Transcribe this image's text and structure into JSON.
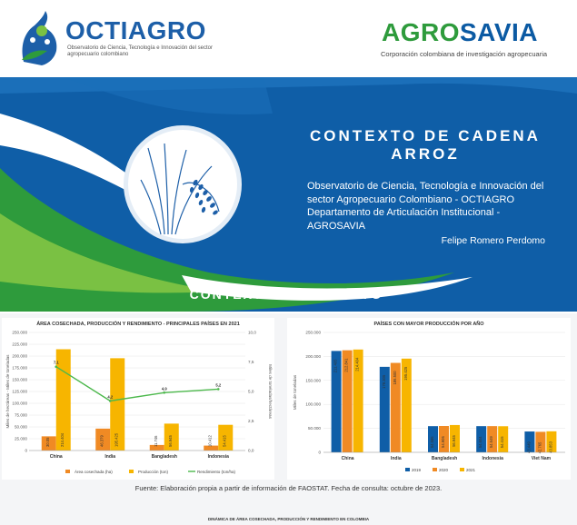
{
  "header": {
    "octiagro_name": "OCTIAGRO",
    "octiagro_subtitle": "Observatorio de Ciencia, Tecnología e Innovación del sector agropecuario colombiano",
    "agrosavia_part1": "AGRO",
    "agrosavia_part2": "SAVIA",
    "agrosavia_subtitle": "Corporación colombiana de investigación agropecuaria"
  },
  "banner": {
    "title_line1": "CONTEXTO DE CADENA",
    "title_line2": "ARROZ",
    "description": "Observatorio de Ciencia, Tecnología e Innovación del sector Agropecuario Colombiano - OCTIAGRO Departamento de Articulación Institucional - AGROSAVIA",
    "author": "Felipe Romero Perdomo",
    "section_title": "CONTEXTO PRODUCTIVO",
    "icon": "rice-plant-icon"
  },
  "colors": {
    "blue": "#0f5ea7",
    "green": "#2e9b3c",
    "orange": "#f08a24",
    "yellow": "#f7b500",
    "line": "#4cb84c"
  },
  "chart_data": [
    {
      "type": "bar",
      "title": "ÁREA COSECHADA, PRODUCCIÓN Y RENDIMIENTO - PRINCIPALES PAÍSES EN 2021",
      "categories": [
        "China",
        "India",
        "Bangladesh",
        "Indonesia"
      ],
      "ylabel": "Miles de hectáreas - Miles de toneladas",
      "y2label": "Miles de toneladas/hectáreas",
      "ylim": [
        0,
        250000
      ],
      "y_ticks": [
        "0",
        "25.000",
        "50.000",
        "75.000",
        "100.000",
        "125.000",
        "150.000",
        "175.000",
        "200.000",
        "225.000",
        "250.000"
      ],
      "y2lim": [
        0,
        10
      ],
      "y2_ticks": [
        "0,0",
        "2,5",
        "5,0",
        "7,5",
        "10,0"
      ],
      "series": [
        {
          "name": "Área cosechada (ha)",
          "values": [
            30.05,
            46.379,
            11.746,
            10.412
          ],
          "labels": [
            "30.05",
            "46.379",
            "11.746",
            "10.412"
          ]
        },
        {
          "name": "Producción (ton)",
          "values": [
            214.404,
            195.425,
            56.945,
            54.415
          ],
          "labels": [
            "214.404",
            "195.425",
            "56.945",
            "54.415"
          ]
        },
        {
          "name": "Rendimiento (ton/ha)",
          "values": [
            7.1,
            4.2,
            4.9,
            5.2
          ],
          "labels": [
            "7,1",
            "4,2",
            "4,9",
            "5,2"
          ]
        }
      ],
      "legend": "bottom"
    },
    {
      "type": "bar",
      "title": "PAÍSES CON MAYOR PRODUCCIÓN POR AÑO",
      "categories": [
        "China",
        "India",
        "Bangladesh",
        "Indonesia",
        "Viet Nam"
      ],
      "ylabel": "Miles de toneladas",
      "ylim": [
        0,
        250000
      ],
      "y_ticks": [
        "0",
        "50.000",
        "100.000",
        "150.000",
        "200.000",
        "250.000"
      ],
      "series": [
        {
          "name": "2019",
          "values": [
            211.405,
            178.305,
            54.586,
            54.604,
            43.449
          ],
          "labels": [
            "211.405",
            "178.305",
            "54.586",
            "54.604",
            "43.449"
          ]
        },
        {
          "name": "2020",
          "values": [
            212.841,
            186.5,
            54.906,
            54.649,
            42.765
          ],
          "labels": [
            "212.841",
            "186.500",
            "54.906",
            "54.649",
            "42.765"
          ]
        },
        {
          "name": "2021",
          "values": [
            214.404,
            195.425,
            56.945,
            54.415,
            43.853
          ],
          "labels": [
            "214.404",
            "195.425",
            "56.945",
            "54.415",
            "43.853"
          ]
        }
      ],
      "legend": "bottom"
    }
  ],
  "source_note": "Fuente: Elaboración propia a partir de información de FAOSTAT. Fecha de consulta: octubre de 2023.",
  "footer": "DINÁMICA DE ÁREA COSECHADA, PRODUCCIÓN Y RENDIMIENTO EN COLOMBIA"
}
